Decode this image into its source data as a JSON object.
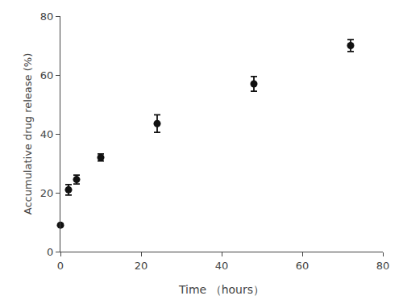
{
  "chart_data": {
    "type": "scatter",
    "xlabel": "Time （hours）",
    "ylabel": "Accumulative drug release (%)",
    "x": [
      0,
      2,
      4,
      10,
      24,
      48,
      72
    ],
    "values": [
      9.0,
      21.0,
      24.5,
      32.0,
      43.5,
      57.0,
      70.0
    ],
    "yerr": [
      0.5,
      1.8,
      1.5,
      1.2,
      3.0,
      2.5,
      2.0
    ],
    "marker": "circle",
    "color": "#111111",
    "xlim": [
      0,
      80
    ],
    "ylim": [
      0,
      80
    ],
    "xticks": [
      0,
      20,
      40,
      60,
      80
    ],
    "yticks": [
      0,
      20,
      40,
      60,
      80
    ],
    "grid": false
  }
}
